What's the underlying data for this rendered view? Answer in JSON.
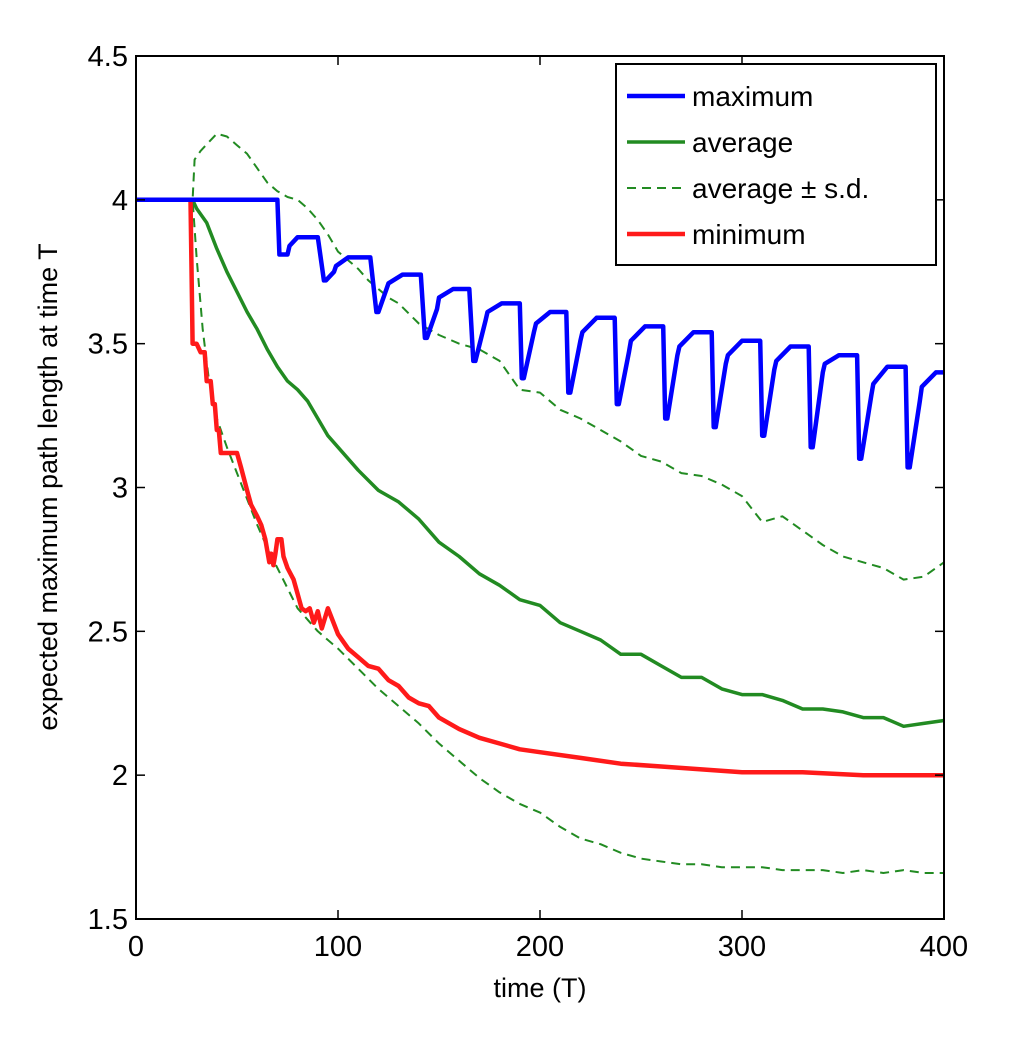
{
  "chart_data": {
    "type": "line",
    "title": "",
    "xlabel": "time (T)",
    "ylabel": "expected maximum path length at time T",
    "xlim": [
      0,
      400
    ],
    "ylim": [
      1.5,
      4.5
    ],
    "xticks": [
      "0",
      "100",
      "200",
      "300",
      "400"
    ],
    "yticks": [
      "1.5",
      "2",
      "2.5",
      "3",
      "3.5",
      "4",
      "4.5"
    ],
    "grid": false,
    "legend_position": "top-right",
    "series": [
      {
        "name": "maximum",
        "color": "#0000ff",
        "style": "solid",
        "x": [
          0,
          70,
          71,
          75,
          76,
          80,
          90,
          93,
          94,
          98,
          99,
          105,
          116,
          119,
          120,
          124,
          125,
          132,
          141,
          143,
          144,
          149,
          150,
          157,
          165,
          167,
          168,
          173,
          174,
          181,
          190,
          191,
          192,
          197,
          198,
          205,
          213,
          214,
          215,
          220,
          221,
          228,
          237,
          238,
          239,
          244,
          245,
          252,
          261,
          262,
          263,
          268,
          269,
          276,
          285,
          286,
          287,
          292,
          293,
          300,
          309,
          310,
          311,
          316,
          317,
          324,
          333,
          334,
          335,
          340,
          341,
          348,
          357,
          358,
          359,
          364,
          365,
          372,
          381,
          382,
          383,
          388,
          389,
          396,
          400
        ],
        "y": [
          4.0,
          4.0,
          3.81,
          3.81,
          3.84,
          3.87,
          3.87,
          3.72,
          3.72,
          3.75,
          3.77,
          3.8,
          3.8,
          3.61,
          3.61,
          3.69,
          3.71,
          3.74,
          3.74,
          3.52,
          3.52,
          3.62,
          3.66,
          3.69,
          3.69,
          3.44,
          3.44,
          3.58,
          3.61,
          3.64,
          3.64,
          3.38,
          3.38,
          3.54,
          3.57,
          3.61,
          3.61,
          3.33,
          3.33,
          3.51,
          3.54,
          3.59,
          3.59,
          3.29,
          3.29,
          3.47,
          3.51,
          3.56,
          3.56,
          3.24,
          3.24,
          3.46,
          3.49,
          3.54,
          3.54,
          3.21,
          3.21,
          3.43,
          3.46,
          3.51,
          3.51,
          3.18,
          3.18,
          3.41,
          3.44,
          3.49,
          3.49,
          3.14,
          3.14,
          3.4,
          3.43,
          3.46,
          3.46,
          3.1,
          3.1,
          3.32,
          3.36,
          3.42,
          3.42,
          3.07,
          3.07,
          3.3,
          3.35,
          3.4,
          3.4
        ]
      },
      {
        "name": "average",
        "color": "#228b22",
        "style": "solid",
        "x": [
          0,
          28,
          30,
          35,
          40,
          45,
          50,
          55,
          60,
          65,
          70,
          75,
          80,
          85,
          90,
          95,
          100,
          110,
          120,
          130,
          140,
          150,
          160,
          170,
          180,
          190,
          200,
          210,
          220,
          230,
          240,
          250,
          260,
          270,
          280,
          290,
          300,
          310,
          320,
          330,
          340,
          350,
          360,
          370,
          380,
          390,
          400
        ],
        "y": [
          4.0,
          4.0,
          3.97,
          3.92,
          3.83,
          3.75,
          3.68,
          3.61,
          3.55,
          3.48,
          3.42,
          3.37,
          3.34,
          3.3,
          3.24,
          3.18,
          3.14,
          3.06,
          2.99,
          2.95,
          2.89,
          2.81,
          2.76,
          2.7,
          2.66,
          2.61,
          2.59,
          2.53,
          2.5,
          2.47,
          2.42,
          2.42,
          2.38,
          2.34,
          2.34,
          2.3,
          2.28,
          2.28,
          2.26,
          2.23,
          2.23,
          2.22,
          2.2,
          2.2,
          2.17,
          2.18,
          2.19
        ]
      },
      {
        "name": "average ± s.d.",
        "color": "#228b22",
        "style": "dashed",
        "x": [
          0,
          28,
          29,
          32,
          36,
          40,
          45,
          50,
          55,
          60,
          65,
          70,
          75,
          80,
          85,
          90,
          95,
          100,
          105,
          110,
          115,
          120,
          125,
          130,
          140,
          150,
          160,
          170,
          180,
          190,
          200,
          210,
          220,
          230,
          240,
          250,
          260,
          270,
          280,
          290,
          300,
          310,
          320,
          330,
          340,
          350,
          360,
          370,
          380,
          390,
          400
        ],
        "y": [
          4.0,
          4.0,
          4.14,
          4.17,
          4.2,
          4.23,
          4.22,
          4.19,
          4.16,
          4.11,
          4.06,
          4.03,
          4.01,
          4.0,
          3.97,
          3.93,
          3.88,
          3.82,
          3.79,
          3.76,
          3.72,
          3.69,
          3.66,
          3.64,
          3.57,
          3.53,
          3.5,
          3.48,
          3.44,
          3.34,
          3.33,
          3.27,
          3.24,
          3.2,
          3.16,
          3.11,
          3.09,
          3.05,
          3.04,
          3.01,
          2.97,
          2.88,
          2.9,
          2.85,
          2.8,
          2.76,
          2.74,
          2.72,
          2.68,
          2.69,
          2.74
        ]
      },
      {
        "name": "",
        "color": "#228b22",
        "style": "dashed",
        "x": [
          0,
          28,
          30,
          33,
          36,
          40,
          45,
          50,
          55,
          60,
          65,
          70,
          75,
          80,
          85,
          90,
          95,
          100,
          110,
          120,
          130,
          140,
          150,
          160,
          170,
          180,
          190,
          200,
          210,
          220,
          230,
          240,
          250,
          260,
          270,
          280,
          290,
          300,
          310,
          320,
          330,
          340,
          350,
          360,
          370,
          380,
          390,
          400
        ],
        "y": [
          4.0,
          4.0,
          3.8,
          3.55,
          3.38,
          3.24,
          3.14,
          3.05,
          2.96,
          2.87,
          2.79,
          2.72,
          2.65,
          2.58,
          2.54,
          2.5,
          2.47,
          2.44,
          2.37,
          2.3,
          2.24,
          2.18,
          2.11,
          2.05,
          1.99,
          1.94,
          1.9,
          1.87,
          1.82,
          1.78,
          1.76,
          1.73,
          1.71,
          1.7,
          1.69,
          1.69,
          1.68,
          1.68,
          1.68,
          1.67,
          1.67,
          1.67,
          1.66,
          1.67,
          1.66,
          1.67,
          1.66,
          1.66
        ]
      },
      {
        "name": "minimum",
        "color": "#ff1a1a",
        "style": "solid",
        "x": [
          0,
          27,
          28,
          30,
          32,
          34,
          35,
          37,
          38,
          39,
          40,
          41,
          42,
          50,
          52,
          55,
          57,
          60,
          62,
          64,
          65,
          66,
          67,
          68,
          69,
          70,
          72,
          73,
          75,
          78,
          80,
          82,
          84,
          86,
          88,
          90,
          92,
          95,
          100,
          105,
          110,
          115,
          120,
          125,
          130,
          135,
          140,
          145,
          150,
          160,
          170,
          180,
          190,
          200,
          220,
          240,
          260,
          280,
          300,
          330,
          360,
          400
        ],
        "y": [
          4.0,
          4.0,
          3.5,
          3.5,
          3.47,
          3.47,
          3.37,
          3.37,
          3.29,
          3.29,
          3.2,
          3.2,
          3.12,
          3.12,
          3.07,
          2.99,
          2.94,
          2.9,
          2.87,
          2.82,
          2.78,
          2.74,
          2.77,
          2.73,
          2.77,
          2.82,
          2.82,
          2.76,
          2.72,
          2.68,
          2.63,
          2.58,
          2.57,
          2.58,
          2.53,
          2.57,
          2.51,
          2.58,
          2.49,
          2.44,
          2.41,
          2.38,
          2.37,
          2.33,
          2.31,
          2.27,
          2.25,
          2.24,
          2.2,
          2.16,
          2.13,
          2.11,
          2.09,
          2.08,
          2.06,
          2.04,
          2.03,
          2.02,
          2.01,
          2.01,
          2.0,
          2.0
        ]
      }
    ]
  }
}
